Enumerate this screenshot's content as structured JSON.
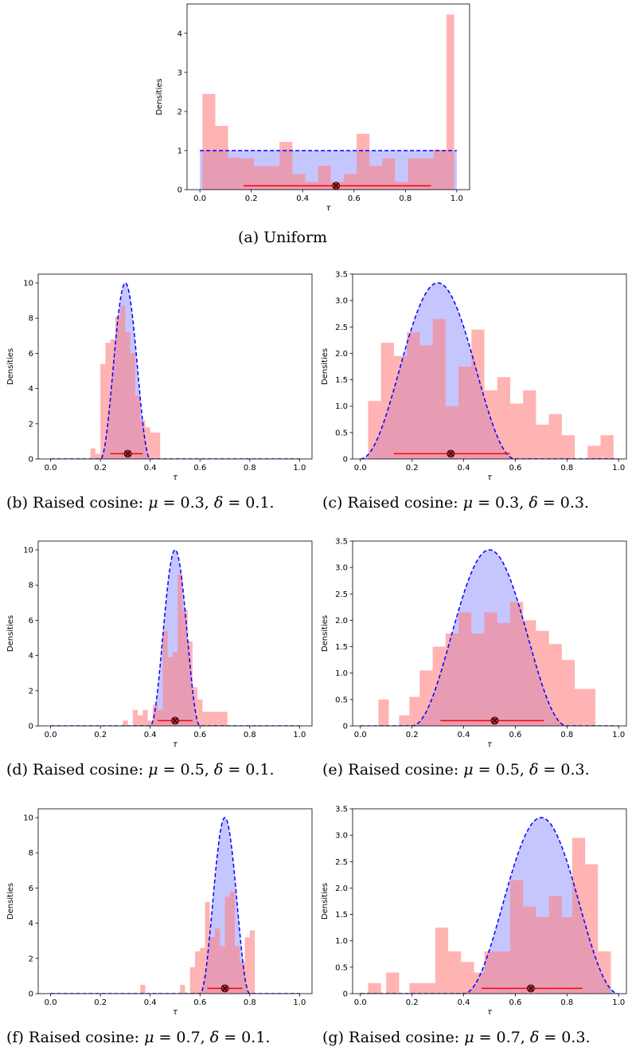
{
  "chart_data": [
    {
      "id": "a",
      "type": "bar",
      "caption": "(a) Uniform",
      "xlabel": "τ",
      "ylabel": "Densities",
      "xlim": [
        -0.05,
        1.05
      ],
      "ylim": [
        0,
        4.75
      ],
      "xticks": [
        0.0,
        0.2,
        0.4,
        0.6,
        0.8,
        1.0
      ],
      "xtick_labels": [
        "0.0",
        "0.2",
        "0.4",
        "0.6",
        "0.8",
        "1.0"
      ],
      "yticks": [
        0,
        1,
        2,
        3,
        4
      ],
      "ytick_labels": [
        "0",
        "1",
        "2",
        "3",
        "4"
      ],
      "prior": {
        "kind": "uniform",
        "density": 1.0
      },
      "histogram": {
        "bin_edges": [
          0.01,
          0.06,
          0.11,
          0.16,
          0.21,
          0.26,
          0.31,
          0.36,
          0.41,
          0.46,
          0.51,
          0.56,
          0.61,
          0.66,
          0.71,
          0.76,
          0.81,
          0.86,
          0.91,
          0.96,
          0.99
        ],
        "densities": [
          2.45,
          1.63,
          0.82,
          0.8,
          0.6,
          0.6,
          1.22,
          0.4,
          0.2,
          0.61,
          0.2,
          0.4,
          1.43,
          0.61,
          0.8,
          0.2,
          0.8,
          0.8,
          1.02,
          4.48
        ]
      },
      "estimate": 0.53,
      "interval": [
        0.17,
        0.9
      ],
      "interval_y": 0.1
    },
    {
      "id": "b",
      "type": "bar",
      "caption": "(b) Raised cosine: μ = 0.3, δ = 0.1.",
      "xlabel": "τ",
      "ylabel": "Densities",
      "xlim": [
        -0.05,
        1.05
      ],
      "ylim": [
        0,
        10.5
      ],
      "xticks": [
        0.0,
        0.2,
        0.4,
        0.6,
        0.8,
        1.0
      ],
      "xtick_labels": [
        "0.0",
        "0.2",
        "0.4",
        "0.6",
        "0.8",
        "1.0"
      ],
      "yticks": [
        0,
        2,
        4,
        6,
        8,
        10
      ],
      "ytick_labels": [
        "0",
        "2",
        "4",
        "6",
        "8",
        "10"
      ],
      "prior": {
        "kind": "raised_cosine",
        "mu": 0.3,
        "delta": 0.1
      },
      "histogram": {
        "bin_edges": [
          0.16,
          0.18,
          0.2,
          0.22,
          0.24,
          0.26,
          0.28,
          0.3,
          0.32,
          0.34,
          0.36,
          0.38,
          0.4,
          0.42,
          0.44
        ],
        "densities": [
          0.6,
          0.3,
          5.4,
          6.6,
          6.8,
          8.1,
          8.7,
          7.2,
          6.0,
          3.6,
          2.2,
          1.8,
          1.5,
          1.5
        ]
      },
      "estimate": 0.31,
      "interval": [
        0.24,
        0.37
      ],
      "interval_y": 0.3
    },
    {
      "id": "c",
      "type": "bar",
      "caption": "(c) Raised cosine: μ = 0.3, δ = 0.3.",
      "xlabel": "τ",
      "ylabel": "Densities",
      "xlim": [
        -0.03,
        1.03
      ],
      "ylim": [
        0,
        3.5
      ],
      "xticks": [
        0.0,
        0.2,
        0.4,
        0.6,
        0.8,
        1.0
      ],
      "xtick_labels": [
        "0.0",
        "0.2",
        "0.4",
        "0.6",
        "0.8",
        "1.0"
      ],
      "yticks": [
        0,
        0.5,
        1.0,
        1.5,
        2.0,
        2.5,
        3.0,
        3.5
      ],
      "ytick_labels": [
        "0",
        "0.5",
        "1.0",
        "1.5",
        "2.0",
        "2.5",
        "3.0",
        "3.5"
      ],
      "prior": {
        "kind": "raised_cosine",
        "mu": 0.3,
        "delta": 0.3
      },
      "histogram": {
        "bin_edges": [
          0.03,
          0.08,
          0.13,
          0.18,
          0.23,
          0.28,
          0.33,
          0.38,
          0.43,
          0.48,
          0.53,
          0.58,
          0.63,
          0.68,
          0.73,
          0.78,
          0.83,
          0.88,
          0.93,
          0.98
        ],
        "densities": [
          1.1,
          2.2,
          1.95,
          2.4,
          2.15,
          2.65,
          1.0,
          1.75,
          2.45,
          1.3,
          1.55,
          1.05,
          1.3,
          0.65,
          0.85,
          0.45,
          0.0,
          0.25,
          0.45
        ]
      },
      "estimate": 0.35,
      "interval": [
        0.13,
        0.58
      ],
      "interval_y": 0.1
    },
    {
      "id": "d",
      "type": "bar",
      "caption": "(d) Raised cosine: μ = 0.5, δ = 0.1.",
      "xlabel": "τ",
      "ylabel": "Densities",
      "xlim": [
        -0.05,
        1.05
      ],
      "ylim": [
        0,
        10.5
      ],
      "xticks": [
        0.0,
        0.2,
        0.4,
        0.6,
        0.8,
        1.0
      ],
      "xtick_labels": [
        "0.0",
        "0.2",
        "0.4",
        "0.6",
        "0.8",
        "1.0"
      ],
      "yticks": [
        0,
        2,
        4,
        6,
        8,
        10
      ],
      "ytick_labels": [
        "0",
        "2",
        "4",
        "6",
        "8",
        "10"
      ],
      "prior": {
        "kind": "raised_cosine",
        "mu": 0.5,
        "delta": 0.1
      },
      "histogram": {
        "bin_edges": [
          0.29,
          0.31,
          0.33,
          0.35,
          0.37,
          0.39,
          0.41,
          0.43,
          0.45,
          0.47,
          0.49,
          0.51,
          0.53,
          0.55,
          0.57,
          0.59,
          0.61,
          0.63,
          0.65,
          0.67,
          0.69,
          0.71
        ],
        "densities": [
          0.3,
          0.0,
          0.9,
          0.6,
          0.9,
          0.3,
          1.2,
          0.9,
          5.4,
          3.9,
          4.2,
          8.6,
          6.6,
          4.8,
          2.2,
          1.5,
          0.8,
          0.8,
          0.8,
          0.8,
          0.8
        ]
      },
      "estimate": 0.5,
      "interval": [
        0.43,
        0.57
      ],
      "interval_y": 0.3
    },
    {
      "id": "e",
      "type": "bar",
      "caption": "(e) Raised cosine: μ = 0.5, δ = 0.3.",
      "xlabel": "τ",
      "ylabel": "Densities",
      "xlim": [
        -0.03,
        1.03
      ],
      "ylim": [
        0,
        3.5
      ],
      "xticks": [
        0.0,
        0.2,
        0.4,
        0.6,
        0.8,
        1.0
      ],
      "xtick_labels": [
        "0.0",
        "0.2",
        "0.4",
        "0.6",
        "0.8",
        "1.0"
      ],
      "yticks": [
        0,
        0.5,
        1.0,
        1.5,
        2.0,
        2.5,
        3.0,
        3.5
      ],
      "ytick_labels": [
        "0",
        "0.5",
        "1.0",
        "1.5",
        "2.0",
        "2.5",
        "3.0",
        "3.5"
      ],
      "prior": {
        "kind": "raised_cosine",
        "mu": 0.5,
        "delta": 0.3
      },
      "histogram": {
        "bin_edges": [
          0.07,
          0.11,
          0.15,
          0.19,
          0.23,
          0.28,
          0.33,
          0.38,
          0.43,
          0.48,
          0.53,
          0.58,
          0.63,
          0.68,
          0.73,
          0.78,
          0.83,
          0.87,
          0.91
        ],
        "densities": [
          0.5,
          0.0,
          0.2,
          0.55,
          1.05,
          1.5,
          1.75,
          2.15,
          1.75,
          2.15,
          1.95,
          2.35,
          2.0,
          1.8,
          1.55,
          1.25,
          0.7,
          0.7
        ]
      },
      "estimate": 0.52,
      "interval": [
        0.31,
        0.71
      ],
      "interval_y": 0.1
    },
    {
      "id": "f",
      "type": "bar",
      "caption": "(f) Raised cosine: μ = 0.7, δ = 0.1.",
      "xlabel": "τ",
      "ylabel": "Densities",
      "xlim": [
        -0.05,
        1.05
      ],
      "ylim": [
        0,
        10.5
      ],
      "xticks": [
        0.0,
        0.2,
        0.4,
        0.6,
        0.8,
        1.0
      ],
      "xtick_labels": [
        "0.0",
        "0.2",
        "0.4",
        "0.6",
        "0.8",
        "1.0"
      ],
      "yticks": [
        0,
        2,
        4,
        6,
        8,
        10
      ],
      "ytick_labels": [
        "0",
        "2",
        "4",
        "6",
        "8",
        "10"
      ],
      "prior": {
        "kind": "raised_cosine",
        "mu": 0.7,
        "delta": 0.1
      },
      "histogram": {
        "bin_edges": [
          0.36,
          0.38,
          0.52,
          0.54,
          0.56,
          0.58,
          0.6,
          0.62,
          0.64,
          0.66,
          0.68,
          0.7,
          0.72,
          0.74,
          0.76,
          0.78,
          0.8,
          0.82
        ],
        "densities": [
          0.5,
          0.0,
          0.5,
          0.0,
          1.5,
          2.4,
          2.6,
          5.2,
          3.2,
          3.7,
          2.7,
          5.5,
          5.8,
          2.7,
          1.8,
          3.2,
          3.6
        ]
      },
      "estimate": 0.7,
      "interval": [
        0.63,
        0.77
      ],
      "interval_y": 0.3
    },
    {
      "id": "g",
      "type": "bar",
      "caption": "(g) Raised cosine: μ = 0.7, δ = 0.3.",
      "xlabel": "τ",
      "ylabel": "Densities",
      "xlim": [
        -0.03,
        1.03
      ],
      "ylim": [
        0,
        3.5
      ],
      "xticks": [
        0.0,
        0.2,
        0.4,
        0.6,
        0.8,
        1.0
      ],
      "xtick_labels": [
        "0.0",
        "0.2",
        "0.4",
        "0.6",
        "0.8",
        "1.0"
      ],
      "yticks": [
        0,
        0.5,
        1.0,
        1.5,
        2.0,
        2.5,
        3.0,
        3.5
      ],
      "ytick_labels": [
        "0",
        "0.5",
        "1.0",
        "1.5",
        "2.0",
        "2.5",
        "3.0",
        "3.5"
      ],
      "prior": {
        "kind": "raised_cosine",
        "mu": 0.7,
        "delta": 0.3
      },
      "histogram": {
        "bin_edges": [
          0.03,
          0.08,
          0.1,
          0.15,
          0.19,
          0.24,
          0.29,
          0.34,
          0.39,
          0.44,
          0.48,
          0.53,
          0.58,
          0.63,
          0.68,
          0.73,
          0.78,
          0.82,
          0.87,
          0.92,
          0.97
        ],
        "densities": [
          0.2,
          0.0,
          0.4,
          0.0,
          0.2,
          0.2,
          1.25,
          0.8,
          0.6,
          0.4,
          0.8,
          0.8,
          2.15,
          1.65,
          1.45,
          1.85,
          1.45,
          2.95,
          2.45,
          0.8
        ]
      },
      "estimate": 0.66,
      "interval": [
        0.47,
        0.86
      ],
      "interval_y": 0.1
    }
  ],
  "colors": {
    "histogram_fill": "#ff8080",
    "histogram_alpha": 0.6,
    "prior_fill": "#8080ff",
    "prior_alpha": 0.45,
    "prior_line": "#0000ff",
    "interval_line": "#ff0000",
    "estimate_marker": "#d62728"
  }
}
